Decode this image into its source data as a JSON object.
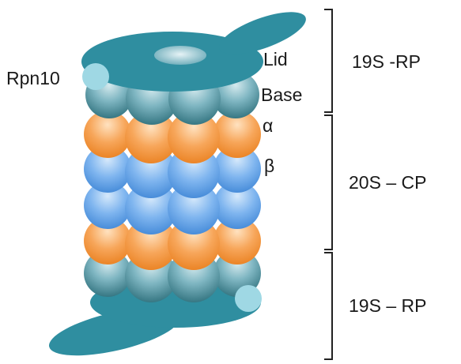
{
  "labels": {
    "rpn10": "Rpn10",
    "lid": "Lid",
    "base": "Base",
    "alpha": "α",
    "beta": "β"
  },
  "brackets": [
    {
      "label": "19S -RP"
    },
    {
      "label": "20S – CP"
    },
    {
      "label": "19S – RP"
    }
  ],
  "colors": {
    "teal": "#2f8ea0",
    "orange": "#f39a45",
    "blue": "#5aa0e8",
    "rpn10": "#9fd8e4"
  }
}
